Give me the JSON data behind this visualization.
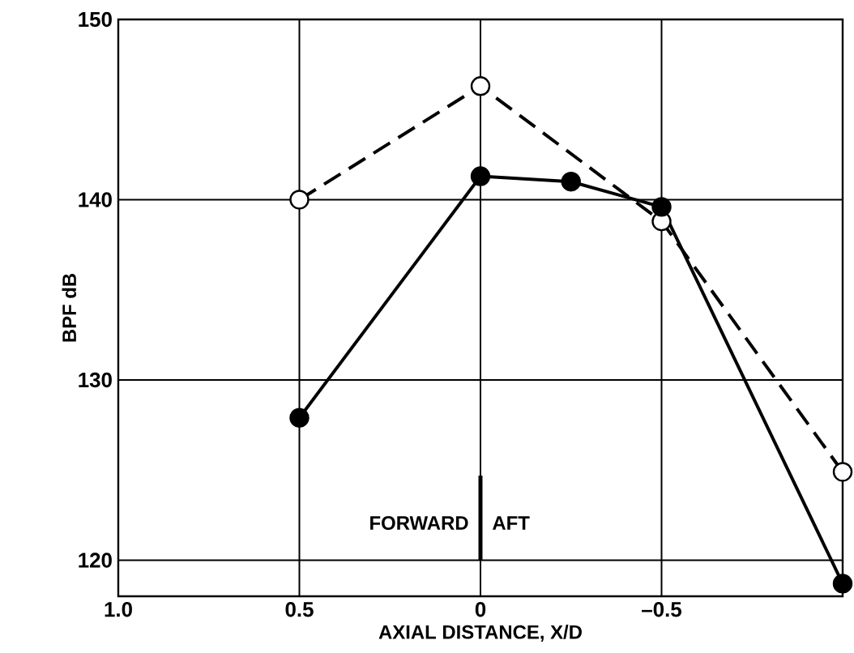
{
  "chart_data": {
    "type": "line",
    "xlabel": "AXIAL DISTANCE, X/D",
    "ylabel": "BPF dB",
    "series": [
      {
        "color": "#000000",
        "line_style": "dashed",
        "marker": "circle",
        "x": [
          0.5,
          0,
          -0.5,
          -1.0
        ],
        "values": [
          140.0,
          146.3,
          138.8,
          124.9
        ]
      },
      {
        "color": "#000000",
        "line_style": "solid",
        "marker": "circle",
        "x": [
          0.5,
          0,
          -0.25,
          -0.5,
          -1.0
        ],
        "values": [
          127.9,
          141.3,
          141.0,
          139.6,
          118.7
        ]
      }
    ],
    "xlim": [
      1.0,
      -1.0
    ],
    "ylim": [
      118,
      150
    ],
    "xticks": [
      {
        "value": 1.0,
        "label": "1.0"
      },
      0.5,
      0,
      {
        "value": -0.5,
        "label": "–0.5"
      }
    ],
    "yticks": [
      120,
      130,
      140,
      150
    ],
    "grid": true,
    "annotations": [
      "FORWARD",
      "AFT"
    ]
  }
}
